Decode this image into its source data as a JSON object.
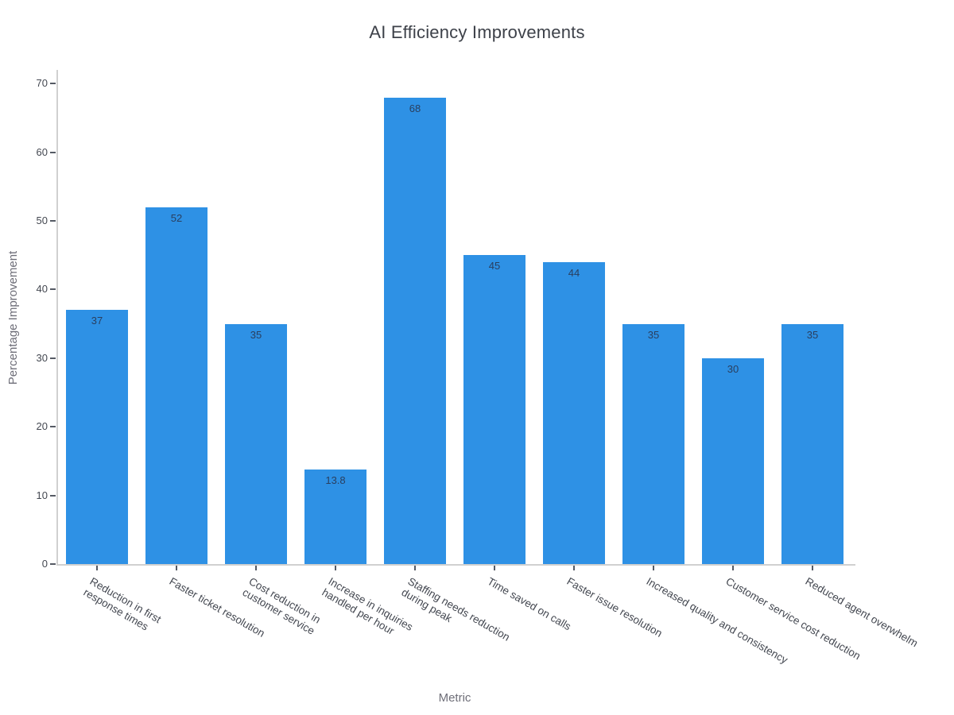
{
  "chart_data": {
    "type": "bar",
    "title": "AI Efficiency Improvements",
    "xlabel": "Metric",
    "ylabel": "Percentage Improvement",
    "categories": [
      "Reduction in first\nresponse times",
      "Faster ticket resolution",
      "Cost reduction in\ncustomer service",
      "Increase in inquiries\nhandled per hour",
      "Staffing needs reduction\nduring peak",
      "Time saved on calls",
      "Faster issue resolution",
      "Increased quality and consistency",
      "Customer service cost reduction",
      "Reduced agent overwhelm"
    ],
    "values": [
      37,
      52,
      35,
      13.8,
      68,
      45,
      44,
      35,
      30,
      35
    ],
    "yticks": [
      0,
      10,
      20,
      30,
      40,
      50,
      60,
      70
    ],
    "ylim": [
      0,
      72
    ],
    "x_tick_angle_deg": 30,
    "grid": false,
    "legend": "none",
    "colors": {
      "bar_fill": "#2E91E5",
      "value_label": "#2a3f5f",
      "axis_line": "#d0d0d0",
      "tick_text": "#444851",
      "axis_title_text": "#6e6e78",
      "title_text": "#3d4149",
      "background": "#ffffff"
    }
  }
}
